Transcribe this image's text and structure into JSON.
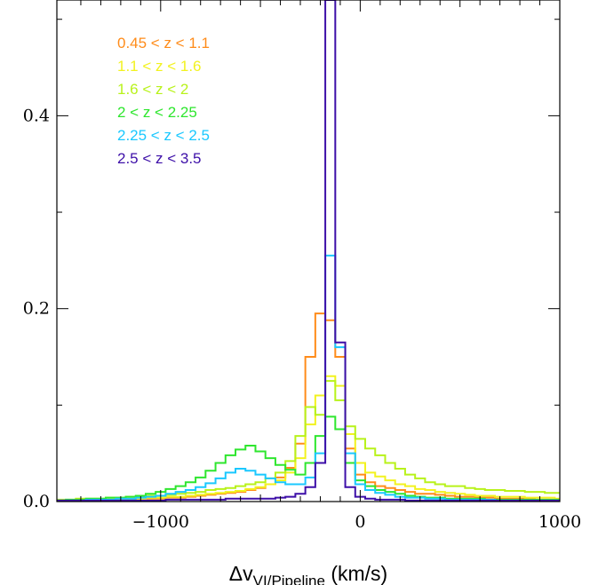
{
  "chart_data": {
    "type": "line",
    "title": "",
    "xlabel": "Δv",
    "xlabel_subscript": "VI/Pipeline",
    "xlabel_unit": " (km/s)",
    "ylabel": "",
    "xlim": [
      -1520,
      1000
    ],
    "ylim": [
      0,
      0.52
    ],
    "x_ticks": [
      {
        "value": -1000,
        "label": "−1000"
      },
      {
        "value": 0,
        "label": "0"
      },
      {
        "value": 1000,
        "label": "1000"
      }
    ],
    "y_ticks": [
      {
        "value": 0.0,
        "label": "0.0"
      },
      {
        "value": 0.2,
        "label": "0.2"
      },
      {
        "value": 0.4,
        "label": "0.4"
      }
    ],
    "grid": false,
    "legend_position": "top-left",
    "bin_width": 50,
    "bin_edges_start": -1525,
    "series": [
      {
        "name": "0.45 < z < 1.1",
        "color": "#ff8c1a",
        "values": [
          0.001,
          0.001,
          0.001,
          0.001,
          0.002,
          0.002,
          0.002,
          0.002,
          0.003,
          0.003,
          0.003,
          0.004,
          0.004,
          0.005,
          0.006,
          0.007,
          0.008,
          0.009,
          0.01,
          0.012,
          0.014,
          0.018,
          0.025,
          0.035,
          0.06,
          0.15,
          0.195,
          0.188,
          0.15,
          0.055,
          0.028,
          0.02,
          0.016,
          0.014,
          0.012,
          0.01,
          0.008,
          0.008,
          0.007,
          0.006,
          0.005,
          0.005,
          0.004,
          0.004,
          0.003,
          0.003,
          0.003,
          0.003,
          0.002,
          0.002,
          0.002
        ]
      },
      {
        "name": "1.1 < z < 1.6",
        "color": "#f2f21f",
        "values": [
          0.001,
          0.001,
          0.002,
          0.002,
          0.002,
          0.002,
          0.003,
          0.003,
          0.003,
          0.004,
          0.004,
          0.005,
          0.005,
          0.006,
          0.007,
          0.008,
          0.009,
          0.01,
          0.011,
          0.013,
          0.015,
          0.018,
          0.022,
          0.03,
          0.045,
          0.08,
          0.11,
          0.13,
          0.12,
          0.07,
          0.04,
          0.03,
          0.026,
          0.022,
          0.018,
          0.016,
          0.013,
          0.012,
          0.01,
          0.009,
          0.008,
          0.007,
          0.006,
          0.006,
          0.005,
          0.005,
          0.005,
          0.004,
          0.004,
          0.004,
          0.003
        ]
      },
      {
        "name": "1.6 < z < 2",
        "color": "#b8f21a",
        "values": [
          0.002,
          0.002,
          0.003,
          0.003,
          0.003,
          0.004,
          0.004,
          0.005,
          0.005,
          0.006,
          0.006,
          0.007,
          0.008,
          0.009,
          0.01,
          0.012,
          0.013,
          0.014,
          0.016,
          0.018,
          0.02,
          0.024,
          0.03,
          0.042,
          0.068,
          0.098,
          0.09,
          0.125,
          0.105,
          0.078,
          0.065,
          0.055,
          0.048,
          0.04,
          0.034,
          0.028,
          0.024,
          0.02,
          0.018,
          0.016,
          0.016,
          0.014,
          0.013,
          0.012,
          0.012,
          0.011,
          0.011,
          0.01,
          0.01,
          0.009,
          0.009
        ]
      },
      {
        "name": "2 < z < 2.25",
        "color": "#2ee62e",
        "values": [
          0.001,
          0.002,
          0.002,
          0.003,
          0.003,
          0.004,
          0.004,
          0.005,
          0.006,
          0.008,
          0.01,
          0.013,
          0.016,
          0.02,
          0.025,
          0.032,
          0.04,
          0.048,
          0.054,
          0.058,
          0.052,
          0.045,
          0.038,
          0.033,
          0.028,
          0.04,
          0.068,
          0.088,
          0.075,
          0.04,
          0.022,
          0.016,
          0.012,
          0.01,
          0.008,
          0.006,
          0.005,
          0.004,
          0.004,
          0.003,
          0.003,
          0.003,
          0.003,
          0.002,
          0.002,
          0.002,
          0.002,
          0.002,
          0.002,
          0.002,
          0.002
        ]
      },
      {
        "name": "2.25 < z < 2.5",
        "color": "#1ac8ff",
        "values": [
          0.001,
          0.001,
          0.001,
          0.002,
          0.002,
          0.002,
          0.003,
          0.003,
          0.004,
          0.005,
          0.006,
          0.008,
          0.01,
          0.012,
          0.015,
          0.019,
          0.024,
          0.03,
          0.034,
          0.032,
          0.028,
          0.024,
          0.02,
          0.018,
          0.018,
          0.025,
          0.05,
          0.255,
          0.16,
          0.05,
          0.018,
          0.012,
          0.009,
          0.007,
          0.005,
          0.004,
          0.004,
          0.003,
          0.003,
          0.002,
          0.002,
          0.002,
          0.002,
          0.002,
          0.001,
          0.001,
          0.001,
          0.001,
          0.001,
          0.001,
          0.001
        ]
      },
      {
        "name": "2.5 < z < 3.5",
        "color": "#3d0fa8",
        "values": [
          0.001,
          0.001,
          0.001,
          0.001,
          0.001,
          0.001,
          0.001,
          0.001,
          0.001,
          0.001,
          0.001,
          0.002,
          0.002,
          0.002,
          0.002,
          0.002,
          0.002,
          0.003,
          0.003,
          0.003,
          0.003,
          0.003,
          0.004,
          0.005,
          0.008,
          0.015,
          0.04,
          0.52,
          0.165,
          0.015,
          0.005,
          0.003,
          0.002,
          0.002,
          0.002,
          0.001,
          0.001,
          0.001,
          0.001,
          0.001,
          0.001,
          0.001,
          0.001,
          0.001,
          0.001,
          0.001,
          0.001,
          0.001,
          0.001,
          0.001,
          0.001
        ]
      }
    ]
  }
}
